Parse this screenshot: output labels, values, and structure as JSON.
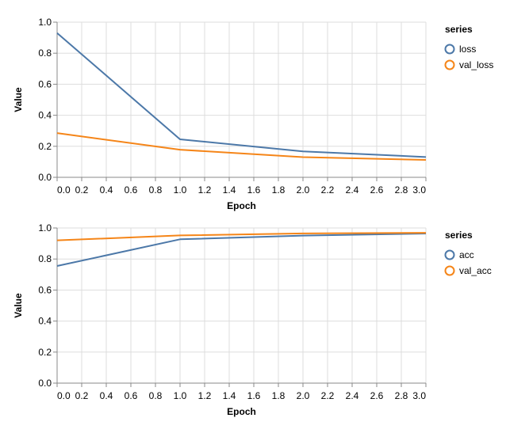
{
  "colors": {
    "series_1": "#4c78a8",
    "series_2": "#f58518",
    "grid": "#dddddd",
    "axis": "#888888"
  },
  "chart_data": [
    {
      "type": "line",
      "xlabel": "Epoch",
      "ylabel": "Value",
      "xlim": [
        0,
        3
      ],
      "ylim": [
        0,
        1
      ],
      "x_ticks": [
        "0.0",
        "0.2",
        "0.4",
        "0.6",
        "0.8",
        "1.0",
        "1.2",
        "1.4",
        "1.6",
        "1.8",
        "2.0",
        "2.2",
        "2.4",
        "2.6",
        "2.8",
        "3.0"
      ],
      "y_ticks": [
        "0.0",
        "0.2",
        "0.4",
        "0.6",
        "0.8",
        "1.0"
      ],
      "grid": true,
      "legend_title": "series",
      "legend_position": "right",
      "x": [
        0,
        1,
        2,
        3
      ],
      "series": [
        {
          "name": "loss",
          "values": [
            0.93,
            0.245,
            0.167,
            0.131
          ]
        },
        {
          "name": "val_loss",
          "values": [
            0.285,
            0.178,
            0.13,
            0.112
          ]
        }
      ]
    },
    {
      "type": "line",
      "xlabel": "Epoch",
      "ylabel": "Value",
      "xlim": [
        0,
        3
      ],
      "ylim": [
        0,
        1
      ],
      "x_ticks": [
        "0.0",
        "0.2",
        "0.4",
        "0.6",
        "0.8",
        "1.0",
        "1.2",
        "1.4",
        "1.6",
        "1.8",
        "2.0",
        "2.2",
        "2.4",
        "2.6",
        "2.8",
        "3.0"
      ],
      "y_ticks": [
        "0.0",
        "0.2",
        "0.4",
        "0.6",
        "0.8",
        "1.0"
      ],
      "grid": true,
      "legend_title": "series",
      "legend_position": "right",
      "x": [
        0,
        1,
        2,
        3
      ],
      "series": [
        {
          "name": "acc",
          "values": [
            0.755,
            0.927,
            0.951,
            0.964
          ]
        },
        {
          "name": "val_acc",
          "values": [
            0.92,
            0.952,
            0.965,
            0.969
          ]
        }
      ]
    }
  ]
}
